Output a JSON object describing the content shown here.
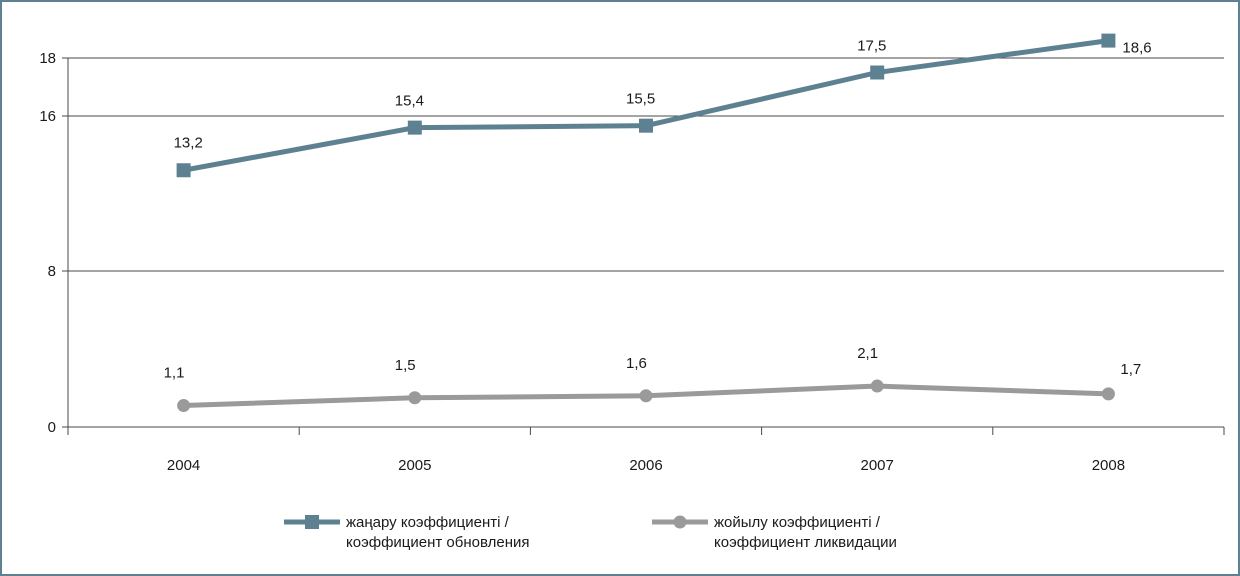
{
  "chart_data": {
    "type": "line",
    "categories": [
      "2004",
      "2005",
      "2006",
      "2007",
      "2008"
    ],
    "y_ticks": [
      "0",
      "8",
      "16",
      "18"
    ],
    "grid": true,
    "legend_placement": "bottom",
    "series": [
      {
        "legend": [
          "жаңару коэффициенті /",
          "коэффициент обновления"
        ],
        "values": [
          13.2,
          15.4,
          15.5,
          17.5,
          18.6
        ],
        "labels": [
          "13,2",
          "15,4",
          "15,5",
          "17,5",
          "18,6"
        ],
        "color": "#5e8192",
        "marker": "square"
      },
      {
        "legend": [
          "жойылу коэффициенті /",
          "коэффициент ликвидации"
        ],
        "values": [
          1.1,
          1.5,
          1.6,
          2.1,
          1.7
        ],
        "labels": [
          "1,1",
          "1,5",
          "1,6",
          "2,1",
          "1,7"
        ],
        "color": "#9a9a9a",
        "marker": "circle"
      }
    ]
  }
}
